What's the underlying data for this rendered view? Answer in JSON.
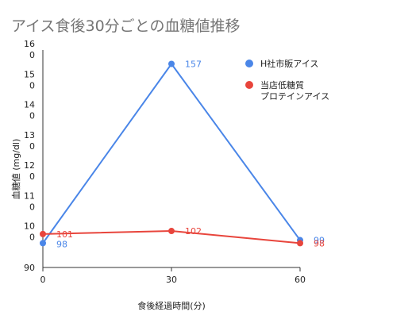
{
  "chart_data": {
    "type": "line",
    "title": "アイス食後30分ごとの血糖値推移",
    "xlabel": "食後経過時間(分)",
    "ylabel": "血糖値 (mg/dl)",
    "x": [
      0,
      30,
      60
    ],
    "xticks": [
      "0",
      "30",
      "60"
    ],
    "ylim": [
      90,
      160
    ],
    "yticks": [
      {
        "value": 160,
        "lines": [
          "16",
          "0"
        ]
      },
      {
        "value": 150,
        "lines": [
          "15",
          "0"
        ]
      },
      {
        "value": 140,
        "lines": [
          "14",
          "0"
        ]
      },
      {
        "value": 130,
        "lines": [
          "13",
          "0"
        ]
      },
      {
        "value": 120,
        "lines": [
          "12",
          "0"
        ]
      },
      {
        "value": 110,
        "lines": [
          "11",
          "0"
        ]
      },
      {
        "value": 100,
        "lines": [
          "10",
          "0"
        ]
      },
      {
        "value": 90,
        "lines": [
          "90"
        ]
      }
    ],
    "series": [
      {
        "name": "H社市販アイス",
        "color": "#4a86e8",
        "values": [
          98,
          157,
          99
        ],
        "labels": [
          "98",
          "157",
          "99"
        ]
      },
      {
        "name": "当店低糖質\nプロテインアイス",
        "color": "#e8453c",
        "values": [
          101,
          102,
          98
        ],
        "labels": [
          "101",
          "102",
          "98"
        ]
      }
    ],
    "legend_position": "right",
    "grid": false
  }
}
